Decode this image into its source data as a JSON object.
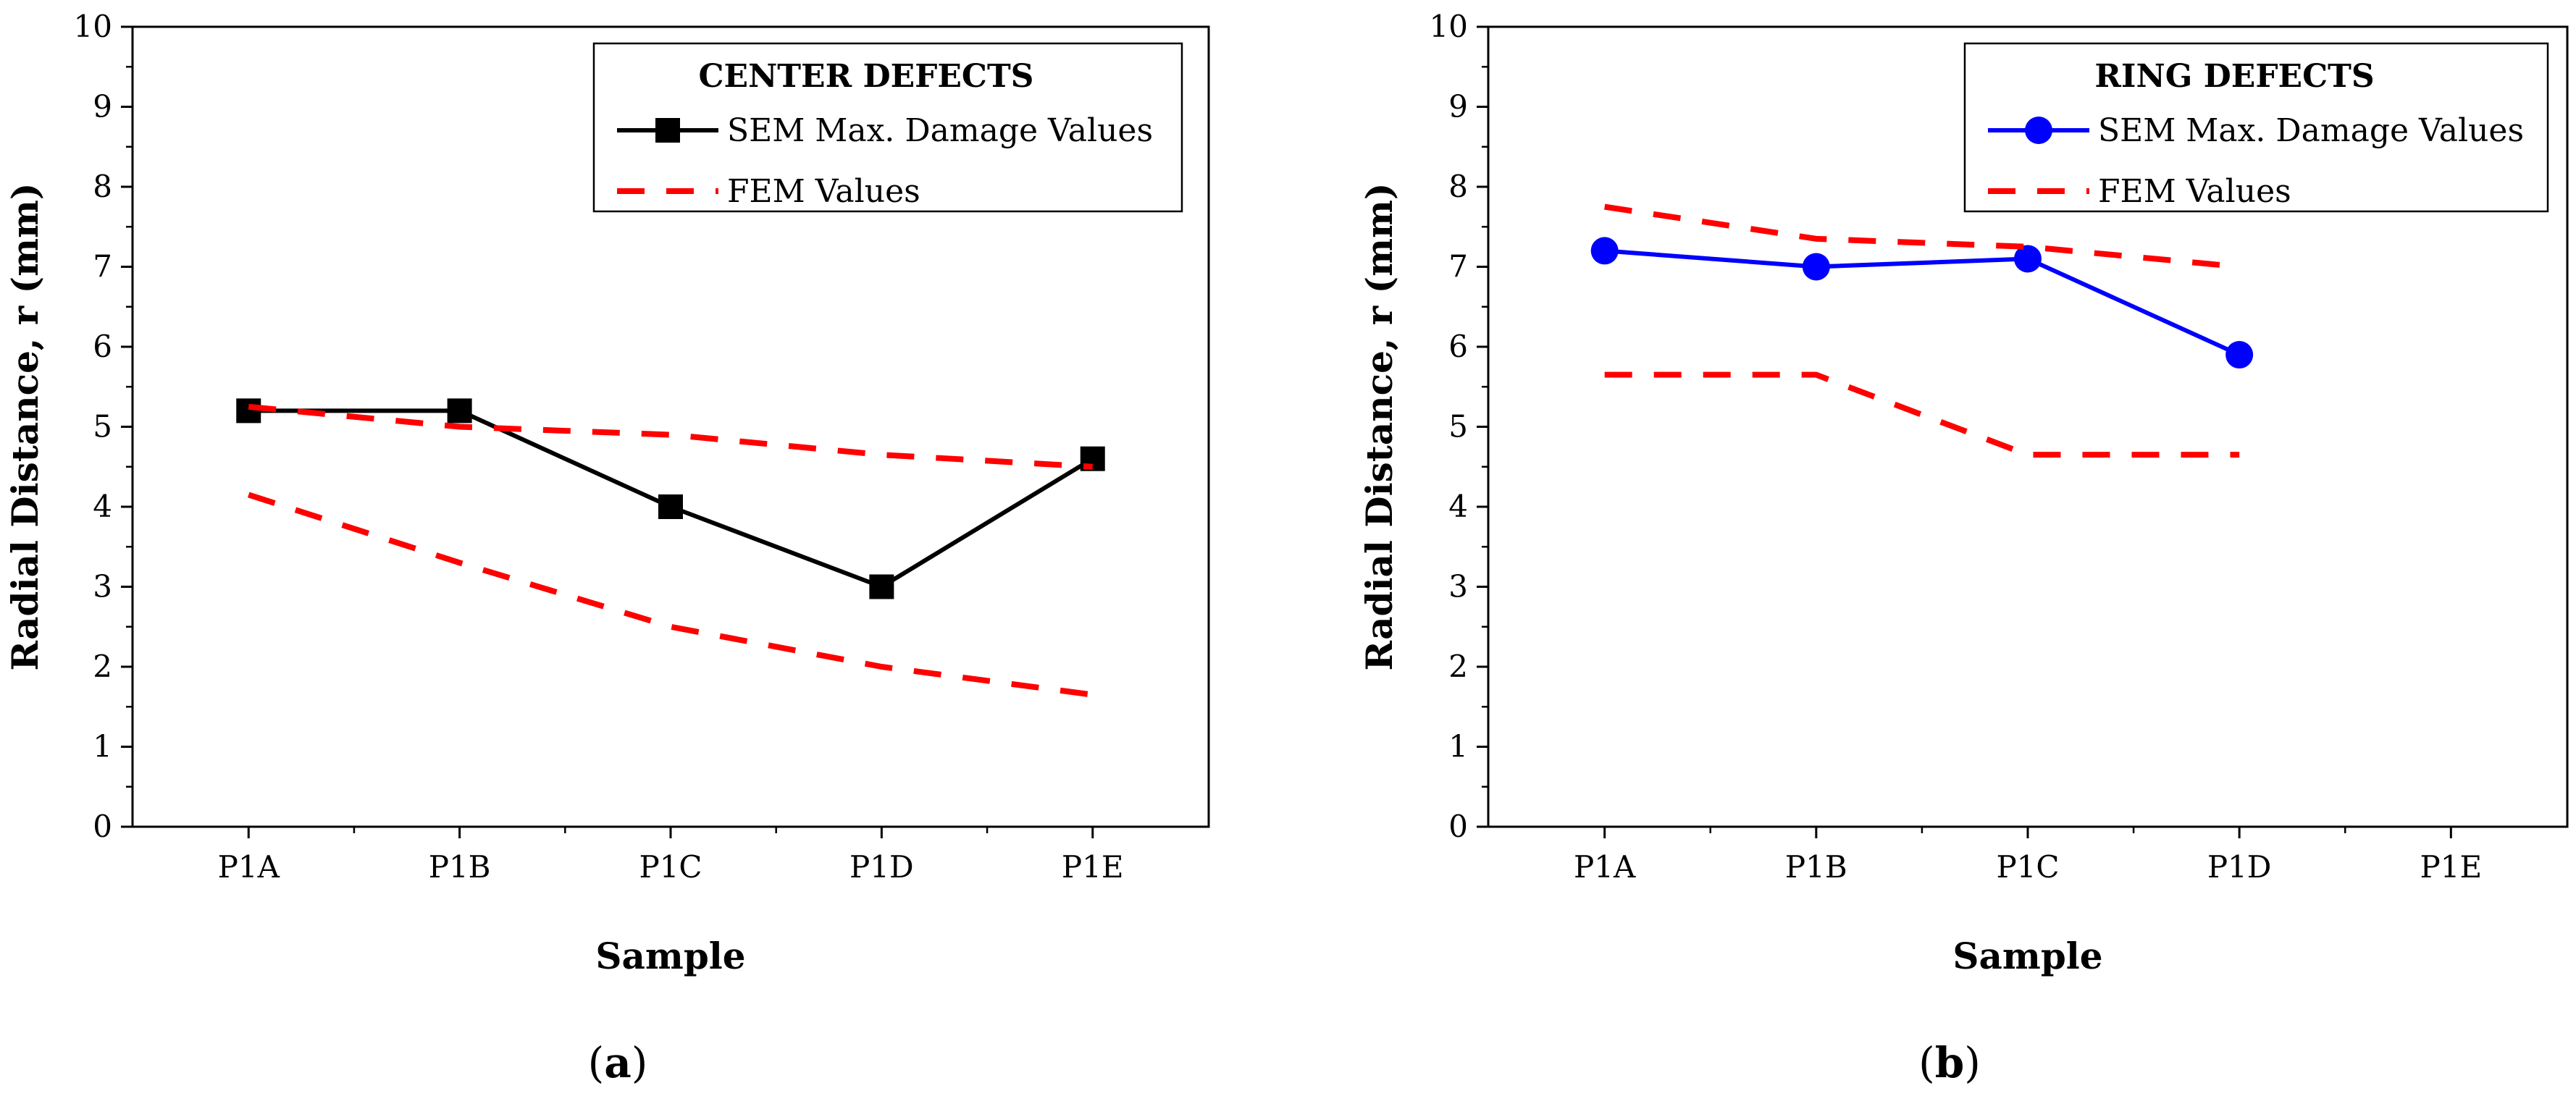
{
  "chart_data": [
    {
      "type": "line",
      "panel_label": "a",
      "legend_title": "CENTER DEFECTS",
      "xlabel": "Sample",
      "ylabel": "Radial Distance, r (mm)",
      "categories": [
        "P1A",
        "P1B",
        "P1C",
        "P1D",
        "P1E"
      ],
      "ylim": [
        0,
        10
      ],
      "yticks": [
        "0",
        "1",
        "2",
        "3",
        "4",
        "5",
        "6",
        "7",
        "8",
        "9",
        "10"
      ],
      "legend_position": "top-right",
      "grid": false,
      "series": [
        {
          "name": "SEM Max. Damage Values",
          "values": [
            5.2,
            5.2,
            4.0,
            3.0,
            4.6
          ],
          "color": "#000000",
          "marker": "square",
          "style": "solid"
        },
        {
          "name": "FEM Values",
          "values": [
            5.25,
            5.0,
            4.9,
            4.65,
            4.5
          ],
          "color": "#ff0000",
          "marker": "none",
          "style": "dashed"
        },
        {
          "values": [
            4.15,
            3.3,
            2.5,
            2.0,
            1.65
          ],
          "color": "#ff0000",
          "marker": "none",
          "style": "dashed"
        }
      ]
    },
    {
      "type": "line",
      "panel_label": "b",
      "legend_title": "RING DEFECTS",
      "xlabel": "Sample",
      "ylabel": "Radial Distance, r (mm)",
      "categories": [
        "P1A",
        "P1B",
        "P1C",
        "P1D",
        "P1E"
      ],
      "ylim": [
        0,
        10
      ],
      "yticks": [
        "0",
        "1",
        "2",
        "3",
        "4",
        "5",
        "6",
        "7",
        "8",
        "9",
        "10"
      ],
      "legend_position": "top-right",
      "grid": false,
      "series": [
        {
          "name": "SEM Max. Damage Values",
          "values": [
            7.2,
            7.0,
            7.1,
            5.9,
            null
          ],
          "color": "#0000ff",
          "marker": "circle",
          "style": "solid"
        },
        {
          "name": "FEM Values",
          "values": [
            7.75,
            7.35,
            7.25,
            7.0,
            null
          ],
          "color": "#ff0000",
          "marker": "none",
          "style": "dashed"
        },
        {
          "values": [
            5.65,
            5.65,
            4.65,
            4.65,
            null
          ],
          "color": "#ff0000",
          "marker": "none",
          "style": "dashed"
        }
      ]
    }
  ]
}
